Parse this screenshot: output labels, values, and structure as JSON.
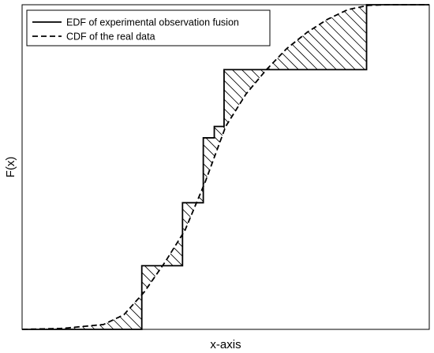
{
  "chart_data": {
    "type": "line",
    "title": "",
    "xlabel": "x-axis",
    "ylabel": "F(x)",
    "xlim": [
      0,
      1
    ],
    "ylim": [
      0,
      1
    ],
    "grid": false,
    "ticks_shown": false,
    "legend_position": "top-left",
    "series": [
      {
        "name": "EDF of experimental observation fusion",
        "style": "solid",
        "step": true,
        "x": [
          0.0,
          0.294,
          0.294,
          0.394,
          0.394,
          0.445,
          0.445,
          0.472,
          0.472,
          0.496,
          0.496,
          0.596,
          0.596,
          0.846,
          0.846,
          1.0
        ],
        "y": [
          0.0,
          0.0,
          0.196,
          0.196,
          0.39,
          0.39,
          0.59,
          0.59,
          0.625,
          0.625,
          0.8,
          0.8,
          0.8,
          0.8,
          1.0,
          1.0
        ]
      },
      {
        "name": "CDF of the real data",
        "style": "dashed",
        "x": [
          0.0,
          0.1,
          0.2,
          0.25,
          0.3,
          0.35,
          0.4,
          0.45,
          0.5,
          0.55,
          0.6,
          0.65,
          0.7,
          0.75,
          0.8,
          0.85,
          0.9,
          1.0
        ],
        "y": [
          0.0,
          0.003,
          0.015,
          0.045,
          0.115,
          0.205,
          0.305,
          0.455,
          0.625,
          0.725,
          0.8,
          0.865,
          0.915,
          0.955,
          0.985,
          0.998,
          1.0,
          1.0
        ]
      }
    ],
    "shading": "hatched region between EDF and CDF"
  },
  "colors": {
    "line": "#000000",
    "background": "#ffffff"
  }
}
